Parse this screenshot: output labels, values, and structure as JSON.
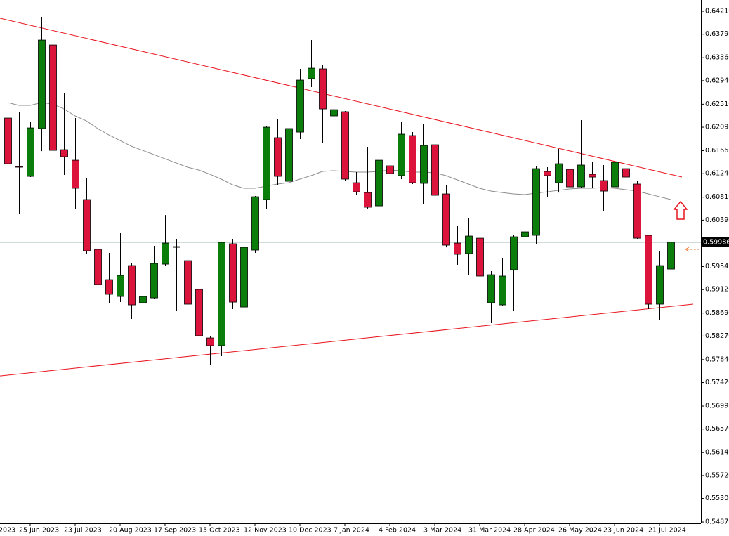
{
  "chart_data": {
    "type": "candlestick",
    "categories": [
      null,
      null,
      "25 Jun 2023",
      null,
      null,
      null,
      "23 Jul 2023",
      null,
      null,
      null,
      "20 Aug 2023",
      null,
      null,
      null,
      "17 Sep 2023",
      null,
      null,
      null,
      "15 Oct 2023",
      null,
      null,
      null,
      "12 Nov 2023",
      null,
      null,
      null,
      "10 Dec 2023",
      null,
      null,
      null,
      "7 Jan 2024",
      null,
      null,
      null,
      "4 Feb 2024",
      null,
      null,
      null,
      "3 Mar 2024",
      null,
      null,
      null,
      "31 Mar 2024",
      null,
      null,
      null,
      "28 Apr 2024",
      null,
      null,
      null,
      "26 May 2024",
      null,
      null,
      null,
      "23 Jun 2024",
      null,
      null,
      null,
      "21 Jul 2024",
      null
    ],
    "x_edge_label": "2023",
    "open": [
      0.62257,
      0.61371,
      0.61191,
      0.62065,
      0.63593,
      0.61679,
      0.61486,
      0.60767,
      0.59855,
      0.59302,
      0.58994,
      0.59559,
      0.58879,
      0.58968,
      0.59585,
      0.59906,
      0.59649,
      0.59123,
      0.58236,
      0.58095,
      0.59958,
      0.58801,
      0.59842,
      0.60767,
      0.61898,
      0.61101,
      0.62,
      0.62977,
      0.63157,
      0.62296,
      0.62373,
      0.61075,
      0.60895,
      0.60651,
      0.61384,
      0.61204,
      0.61936,
      0.61063,
      0.61769,
      0.6087,
      0.5997,
      0.59778,
      0.6006,
      0.58879,
      0.5884,
      0.59482,
      0.60086,
      0.60112,
      0.61281,
      0.61075,
      0.61319,
      0.60998,
      0.61229,
      0.61114,
      0.60998,
      0.61332,
      0.6105,
      0.60112,
      0.58853,
      0.59495
    ],
    "high": [
      0.6236,
      0.6236,
      0.62193,
      0.64107,
      0.63645,
      0.62707,
      0.62257,
      0.61165,
      0.59919,
      0.59791,
      0.6015,
      0.59611,
      0.59431,
      0.59919,
      0.60484,
      0.60048,
      0.60561,
      0.59277,
      0.58275,
      0.59996,
      0.60048,
      0.60561,
      0.60831,
      0.62103,
      0.62232,
      0.62489,
      0.63157,
      0.63683,
      0.63234,
      0.62771,
      0.62386,
      0.61268,
      0.61731,
      0.61564,
      0.61461,
      0.6218,
      0.62,
      0.62142,
      0.61833,
      0.61037,
      0.60279,
      0.6042,
      0.60818,
      0.59457,
      0.59701,
      0.60125,
      0.60382,
      0.61384,
      0.61358,
      0.61692,
      0.62142,
      0.62219,
      0.61461,
      0.61397,
      0.61461,
      0.61512,
      0.61101,
      0.60112,
      0.59829,
      0.60343
    ],
    "low": [
      0.61178,
      0.60497,
      0.61178,
      0.61653,
      0.6164,
      0.61217,
      0.606,
      0.59765,
      0.5902,
      0.58866,
      0.58891,
      0.58583,
      0.58866,
      0.58955,
      0.59559,
      0.58724,
      0.58827,
      0.58146,
      0.57735,
      0.57902,
      0.58763,
      0.58634,
      0.59791,
      0.606,
      0.61037,
      0.60818,
      0.61872,
      0.62823,
      0.61808,
      0.61923,
      0.61114,
      0.60844,
      0.60587,
      0.60394,
      0.60549,
      0.6114,
      0.6105,
      0.6069,
      0.60818,
      0.59893,
      0.59572,
      0.59392,
      0.59354,
      0.58506,
      0.58814,
      0.58737,
      0.59816,
      0.59945,
      0.60806,
      0.60895,
      0.60973,
      0.60973,
      0.60973,
      0.60561,
      0.60472,
      0.60639,
      0.60048,
      0.58763,
      0.58557,
      0.5848
    ],
    "close": [
      0.61422,
      0.61358,
      0.62077,
      0.63683,
      0.61666,
      0.61551,
      0.60973,
      0.59829,
      0.59213,
      0.59033,
      0.5938,
      0.5884,
      0.58994,
      0.59598,
      0.5997,
      0.59893,
      0.58853,
      0.58275,
      0.58095,
      0.59983,
      0.58891,
      0.59893,
      0.60818,
      0.6209,
      0.61191,
      0.62065,
      0.62951,
      0.63169,
      0.62424,
      0.62411,
      0.6114,
      0.60908,
      0.60626,
      0.61486,
      0.61242,
      0.61962,
      0.61075,
      0.61756,
      0.60844,
      0.59932,
      0.59765,
      0.60099,
      0.59367,
      0.59392,
      0.59367,
      0.60086,
      0.60176,
      0.61332,
      0.61204,
      0.61422,
      0.60998,
      0.61397,
      0.61178,
      0.60921,
      0.61448,
      0.61178,
      0.6006,
      0.58853,
      0.59559,
      0.59986
    ],
    "up_color": "#0a7d0a",
    "down_color": "#dc143c",
    "moving_average": {
      "color": "#8c8c8c",
      "values": [
        0.6254,
        0.62489,
        0.62489,
        0.6254,
        0.62514,
        0.62424,
        0.62296,
        0.62206,
        0.62065,
        0.61949,
        0.61846,
        0.61743,
        0.61666,
        0.61589,
        0.61512,
        0.61435,
        0.61358,
        0.61307,
        0.61229,
        0.6114,
        0.61037,
        0.60973,
        0.60973,
        0.61011,
        0.6105,
        0.61075,
        0.6114,
        0.61204,
        0.61281,
        0.61294,
        0.61281,
        0.61268,
        0.61268,
        0.61281,
        0.61307,
        0.61294,
        0.61268,
        0.61268,
        0.61255,
        0.61204,
        0.61127,
        0.6105,
        0.60973,
        0.60921,
        0.60895,
        0.6087,
        0.60857,
        0.60883,
        0.60908,
        0.60934,
        0.6096,
        0.60973,
        0.60973,
        0.60986,
        0.60973,
        0.60947,
        0.60921,
        0.6087,
        0.60818,
        0.60767
      ]
    },
    "trendlines": [
      {
        "color": "#e8141e",
        "x": [
          -0.6875,
          60
        ],
        "values": [
          0.64082,
          0.61178
        ]
      },
      {
        "color": "#e8141e",
        "x": [
          -0.6875,
          61
        ],
        "values": [
          0.57542,
          0.58853
        ]
      }
    ],
    "current_price": 0.59986,
    "current_price_color": "#7f9f9f",
    "ylim": [
      0.54845,
      0.64416
    ],
    "yticks": [
      {
        "value": 0.6421,
        "label": "0.64210"
      },
      {
        "value": 0.6379,
        "label": "0.63790"
      },
      {
        "value": 0.6336,
        "label": "0.63360"
      },
      {
        "value": 0.6294,
        "label": "0.62940"
      },
      {
        "value": 0.6251,
        "label": "0.62510"
      },
      {
        "value": 0.6209,
        "label": "0.62090"
      },
      {
        "value": 0.6166,
        "label": "0.61660"
      },
      {
        "value": 0.6124,
        "label": "0.61240"
      },
      {
        "value": 0.6081,
        "label": "0.60810"
      },
      {
        "value": 0.6039,
        "label": "0.60390"
      },
      {
        "value": 0.5954,
        "label": "0.59540"
      },
      {
        "value": 0.5912,
        "label": "0.59120"
      },
      {
        "value": 0.5869,
        "label": "0.58690"
      },
      {
        "value": 0.5827,
        "label": "0.58270"
      },
      {
        "value": 0.5784,
        "label": "0.57840"
      },
      {
        "value": 0.5742,
        "label": "0.57420"
      },
      {
        "value": 0.5699,
        "label": "0.56990"
      },
      {
        "value": 0.5657,
        "label": "0.56570"
      },
      {
        "value": 0.5614,
        "label": "0.56140"
      },
      {
        "value": 0.5572,
        "label": "0.55720"
      },
      {
        "value": 0.553,
        "label": "0.55300"
      },
      {
        "value": 0.5487,
        "label": "0.54870"
      }
    ],
    "grid": false
  }
}
